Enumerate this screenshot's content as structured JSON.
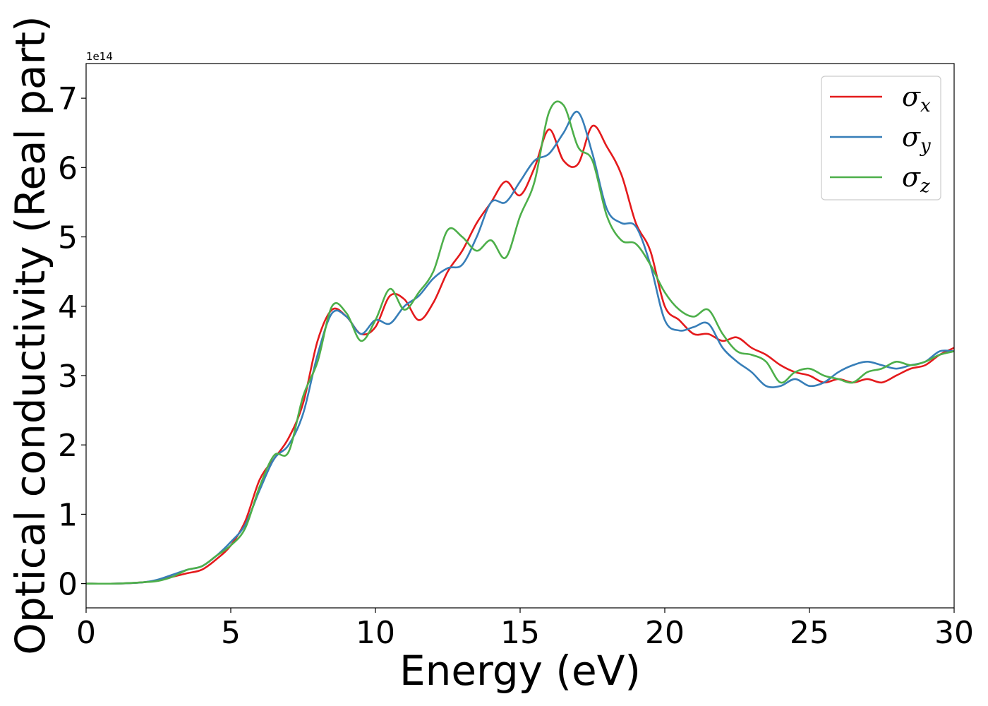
{
  "chart_data": {
    "type": "line",
    "xlabel": "Energy (eV)",
    "ylabel": "Optical conductivity (Real part)",
    "y_offset_label": "1e14",
    "xlim": [
      0,
      30
    ],
    "ylim": [
      -0.35,
      7.5
    ],
    "x_ticks": [
      0,
      5,
      10,
      15,
      20,
      25,
      30
    ],
    "y_ticks": [
      0,
      1,
      2,
      3,
      4,
      5,
      6,
      7
    ],
    "grid": false,
    "legend_position": "top-right",
    "x": [
      0,
      1,
      2,
      2.5,
      3,
      3.5,
      4,
      4.5,
      5,
      5.5,
      6,
      6.5,
      7,
      7.5,
      8,
      8.5,
      9,
      9.5,
      10,
      10.5,
      11,
      11.5,
      12,
      12.5,
      13,
      13.5,
      14,
      14.5,
      15,
      15.5,
      16,
      16.5,
      17,
      17.5,
      18,
      18.5,
      19,
      19.5,
      20,
      20.5,
      21,
      21.5,
      22,
      22.5,
      23,
      23.5,
      24,
      24.5,
      25,
      25.5,
      26,
      26.5,
      27,
      27.5,
      28,
      28.5,
      29,
      29.5,
      30
    ],
    "series": [
      {
        "name": "σ",
        "subscript": "x",
        "color": "#e41a1c",
        "values": [
          0,
          0,
          0.02,
          0.05,
          0.1,
          0.15,
          0.2,
          0.35,
          0.55,
          0.9,
          1.5,
          1.8,
          2.1,
          2.6,
          3.5,
          3.95,
          3.85,
          3.6,
          3.7,
          4.15,
          4.1,
          3.8,
          4.05,
          4.5,
          4.8,
          5.2,
          5.5,
          5.8,
          5.6,
          6.0,
          6.55,
          6.1,
          6.05,
          6.6,
          6.3,
          5.9,
          5.2,
          4.8,
          4.0,
          3.8,
          3.6,
          3.6,
          3.5,
          3.55,
          3.4,
          3.3,
          3.15,
          3.05,
          3.0,
          2.9,
          2.95,
          2.9,
          2.95,
          2.9,
          3.0,
          3.1,
          3.15,
          3.3,
          3.4
        ]
      },
      {
        "name": "σ",
        "subscript": "y",
        "color": "#377eb8",
        "values": [
          0,
          0,
          0.02,
          0.06,
          0.13,
          0.2,
          0.25,
          0.4,
          0.6,
          0.85,
          1.35,
          1.8,
          2.0,
          2.45,
          3.3,
          3.9,
          3.85,
          3.6,
          3.8,
          3.75,
          4.0,
          4.15,
          4.4,
          4.55,
          4.6,
          5.0,
          5.5,
          5.5,
          5.8,
          6.1,
          6.2,
          6.5,
          6.8,
          6.2,
          5.4,
          5.2,
          5.15,
          4.6,
          3.8,
          3.65,
          3.7,
          3.75,
          3.4,
          3.2,
          3.05,
          2.85,
          2.85,
          2.95,
          2.85,
          2.9,
          3.05,
          3.15,
          3.2,
          3.15,
          3.1,
          3.15,
          3.2,
          3.35,
          3.35
        ]
      },
      {
        "name": "σ",
        "subscript": "z",
        "color": "#4daf4a",
        "values": [
          0,
          0,
          0.02,
          0.04,
          0.1,
          0.2,
          0.25,
          0.4,
          0.55,
          0.8,
          1.4,
          1.85,
          1.9,
          2.7,
          3.2,
          4.0,
          3.9,
          3.5,
          3.8,
          4.25,
          3.95,
          4.2,
          4.5,
          5.1,
          5.0,
          4.8,
          4.95,
          4.7,
          5.3,
          5.8,
          6.8,
          6.9,
          6.3,
          6.1,
          5.3,
          4.95,
          4.9,
          4.6,
          4.2,
          3.95,
          3.85,
          3.95,
          3.6,
          3.35,
          3.3,
          3.2,
          2.9,
          3.05,
          3.1,
          3.0,
          2.95,
          2.9,
          3.05,
          3.1,
          3.2,
          3.15,
          3.2,
          3.3,
          3.35
        ]
      }
    ]
  }
}
